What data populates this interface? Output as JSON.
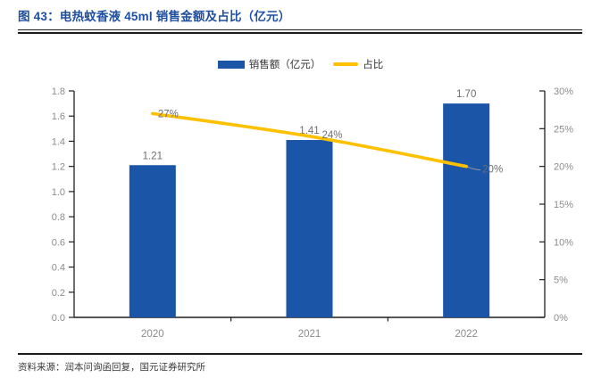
{
  "figure": {
    "title": "图 43：电热蚊香液 45ml 销售金额及占比（亿元）",
    "source": "资料来源：润本问询函回复，国元证券研究所"
  },
  "legend": {
    "items": [
      {
        "label": "销售额（亿元）",
        "swatch": "bar-swatch"
      },
      {
        "label": "占比",
        "swatch": "line-swatch"
      }
    ]
  },
  "colors": {
    "bar": "#1B55A7",
    "line": "#FFC000",
    "title": "#1F4FA0",
    "axis": "#1f1f1f",
    "axis_label": "#8C8C8C",
    "data_label": "#6E6E6E",
    "leader": "#9a9a9a"
  },
  "chart_data": {
    "type": "bar",
    "title": "电热蚊香液 45ml 销售金额及占比（亿元）",
    "categories": [
      "2020",
      "2021",
      "2022"
    ],
    "series": [
      {
        "name": "销售额（亿元）",
        "type": "bar",
        "axis": "left",
        "values": [
          1.21,
          1.41,
          1.7
        ],
        "point_labels": [
          "1.21",
          "1.41",
          "1.70"
        ]
      },
      {
        "name": "占比",
        "type": "line",
        "axis": "right",
        "values": [
          27,
          24,
          20
        ],
        "point_labels": [
          "27%",
          "24%",
          "20%"
        ]
      }
    ],
    "left_axis": {
      "min": 0,
      "max": 1.8,
      "step": 0.2,
      "tick_labels": [
        "0.0",
        "0.2",
        "0.4",
        "0.6",
        "0.8",
        "1.0",
        "1.2",
        "1.4",
        "1.6",
        "1.8"
      ]
    },
    "right_axis": {
      "min": 0,
      "max": 30,
      "step": 5,
      "tick_labels": [
        "0%",
        "5%",
        "10%",
        "15%",
        "20%",
        "25%",
        "30%"
      ]
    },
    "legend_position": "top-center",
    "grid": false
  }
}
